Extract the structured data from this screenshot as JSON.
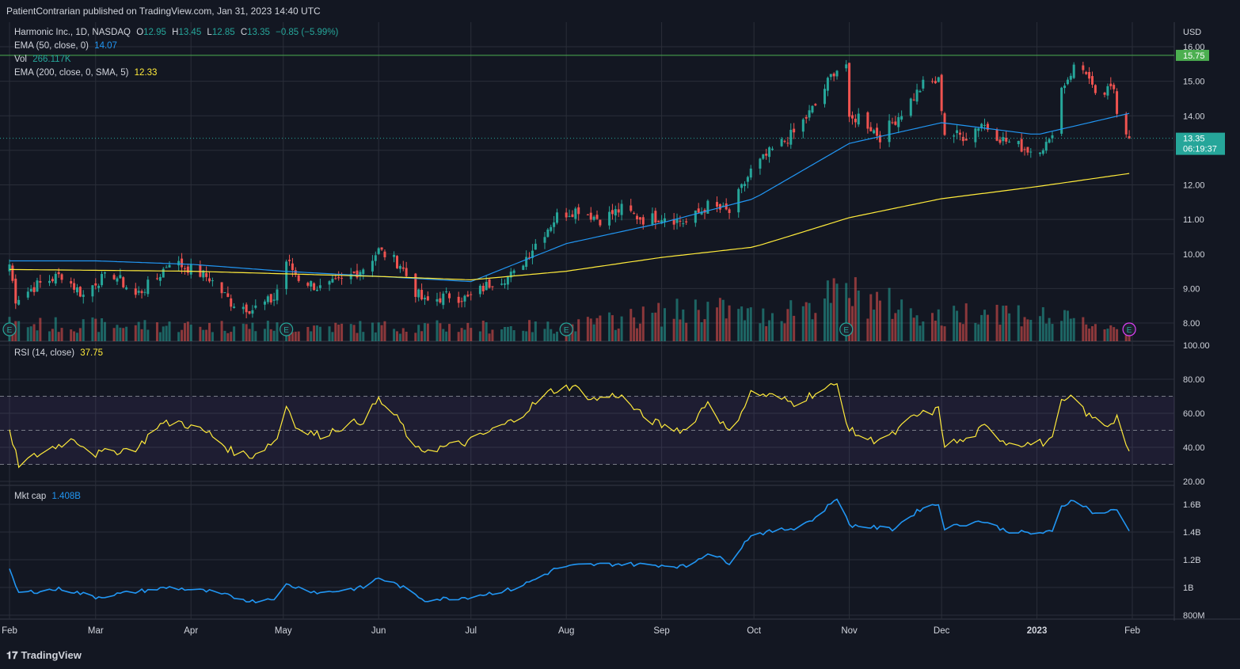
{
  "publisher_line": "PatientContrarian published on TradingView.com, Jan 31, 2023 14:40 UTC",
  "footer_logo": "TradingView",
  "legend": {
    "symbol": "Harmonic Inc., 1D, NASDAQ",
    "o_label": "O",
    "o_value": "12.95",
    "h_label": "H",
    "h_value": "13.45",
    "l_label": "L",
    "l_value": "12.85",
    "c_label": "C",
    "c_value": "13.35",
    "change": "−0.85 (−5.99%)",
    "ema50_label": "EMA (50, close, 0)",
    "ema50_value": "14.07",
    "vol_label": "Vol",
    "vol_value": "266.117K",
    "ema200_label": "EMA (200, close, 0, SMA, 5)",
    "ema200_value": "12.33",
    "rsi_label": "RSI (14, close)",
    "rsi_value": "37.75",
    "mktcap_label": "Mkt cap",
    "mktcap_value": "1.408B"
  },
  "colors": {
    "background": "#131722",
    "grid": "#2a2e39",
    "up": "#26a69a",
    "down": "#ef5350",
    "ema50": "#2196f3",
    "ema200": "#ffeb3b",
    "rsi": "#ffeb3b",
    "mktcap": "#2196f3",
    "resistance_line": "#4caf50"
  },
  "price_axis": {
    "currency": "USD",
    "ticks": [
      "16.00",
      "15.00",
      "14.00",
      "13.00",
      "12.00",
      "11.00",
      "10.00",
      "9.00",
      "8.00"
    ],
    "resistance_label": "15.75",
    "last_price_label": "13.35",
    "countdown_label": "06:19:37"
  },
  "rsi_axis": {
    "ticks": [
      "100.00",
      "80.00",
      "60.00",
      "40.00",
      "20.00"
    ]
  },
  "mktcap_axis": {
    "ticks": [
      "1.6B",
      "1.4B",
      "1.2B",
      "1B",
      "800M"
    ]
  },
  "time_axis": {
    "labels": [
      "Feb",
      "Mar",
      "Apr",
      "May",
      "Jun",
      "Jul",
      "Aug",
      "Sep",
      "Oct",
      "Nov",
      "Dec",
      "2023",
      "Feb"
    ]
  },
  "earnings_marker": "E",
  "chart_data": [
    {
      "type": "candlestick",
      "title": "Harmonic Inc., 1D, NASDAQ",
      "ylim": [
        7.5,
        16.2
      ],
      "y_unit": "USD",
      "resistance_level": 15.75,
      "last_close": 13.35,
      "anchors_close": [
        [
          "2022-02-01",
          9.7
        ],
        [
          "2022-02-03",
          8.7
        ],
        [
          "2022-02-10",
          9.1
        ],
        [
          "2022-02-18",
          9.4
        ],
        [
          "2022-02-25",
          8.8
        ],
        [
          "2022-03-01",
          9.2
        ],
        [
          "2022-03-07",
          9.4
        ],
        [
          "2022-03-14",
          8.8
        ],
        [
          "2022-03-21",
          9.3
        ],
        [
          "2022-03-25",
          9.8
        ],
        [
          "2022-03-31",
          9.6
        ],
        [
          "2022-04-07",
          9.3
        ],
        [
          "2022-04-14",
          8.6
        ],
        [
          "2022-04-21",
          8.4
        ],
        [
          "2022-04-28",
          8.7
        ],
        [
          "2022-05-02",
          9.8
        ],
        [
          "2022-05-06",
          9.3
        ],
        [
          "2022-05-13",
          9.0
        ],
        [
          "2022-05-20",
          9.2
        ],
        [
          "2022-05-27",
          9.6
        ],
        [
          "2022-06-01",
          10.1
        ],
        [
          "2022-06-08",
          9.7
        ],
        [
          "2022-06-13",
          8.9
        ],
        [
          "2022-06-16",
          8.6
        ],
        [
          "2022-06-24",
          8.8
        ],
        [
          "2022-06-30",
          8.7
        ],
        [
          "2022-07-08",
          9.2
        ],
        [
          "2022-07-15",
          9.4
        ],
        [
          "2022-07-22",
          10.3
        ],
        [
          "2022-07-29",
          11.1
        ],
        [
          "2022-08-05",
          11.3
        ],
        [
          "2022-08-12",
          11.0
        ],
        [
          "2022-08-19",
          11.3
        ],
        [
          "2022-08-26",
          11.0
        ],
        [
          "2022-09-02",
          11.1
        ],
        [
          "2022-09-09",
          10.9
        ],
        [
          "2022-09-16",
          11.4
        ],
        [
          "2022-09-23",
          11.2
        ],
        [
          "2022-09-30",
          12.4
        ],
        [
          "2022-10-07",
          13.0
        ],
        [
          "2022-10-14",
          13.5
        ],
        [
          "2022-10-21",
          14.3
        ],
        [
          "2022-10-27",
          15.3
        ],
        [
          "2022-10-31",
          15.5
        ],
        [
          "2022-11-01",
          13.8
        ],
        [
          "2022-11-04",
          14.0
        ],
        [
          "2022-11-11",
          13.4
        ],
        [
          "2022-11-18",
          14.1
        ],
        [
          "2022-11-25",
          14.9
        ],
        [
          "2022-11-30",
          15.0
        ],
        [
          "2022-12-02",
          13.5
        ],
        [
          "2022-12-09",
          13.4
        ],
        [
          "2022-12-14",
          13.8
        ],
        [
          "2022-12-21",
          13.3
        ],
        [
          "2022-12-30",
          13.0
        ],
        [
          "2023-01-05",
          13.2
        ],
        [
          "2023-01-09",
          14.8
        ],
        [
          "2023-01-13",
          15.4
        ],
        [
          "2023-01-17",
          15.3
        ],
        [
          "2023-01-20",
          14.5
        ],
        [
          "2023-01-26",
          14.8
        ],
        [
          "2023-01-27",
          14.2
        ],
        [
          "2023-01-31",
          13.35
        ]
      ],
      "series": [
        {
          "name": "EMA (50, close, 0)",
          "values": [
            [
              "2022-02-01",
              9.8
            ],
            [
              "2022-03-01",
              9.8
            ],
            [
              "2022-04-01",
              9.7
            ],
            [
              "2022-05-01",
              9.5
            ],
            [
              "2022-06-01",
              9.35
            ],
            [
              "2022-07-01",
              9.2
            ],
            [
              "2022-08-01",
              10.3
            ],
            [
              "2022-09-01",
              10.9
            ],
            [
              "2022-10-01",
              11.6
            ],
            [
              "2022-11-01",
              13.2
            ],
            [
              "2022-12-01",
              13.8
            ],
            [
              "2023-01-01",
              13.45
            ],
            [
              "2023-01-31",
              14.07
            ]
          ]
        },
        {
          "name": "EMA (200, close, 0, SMA, 5)",
          "values": [
            [
              "2022-02-01",
              9.55
            ],
            [
              "2022-04-01",
              9.5
            ],
            [
              "2022-06-01",
              9.35
            ],
            [
              "2022-07-01",
              9.25
            ],
            [
              "2022-08-01",
              9.5
            ],
            [
              "2022-09-01",
              9.9
            ],
            [
              "2022-10-01",
              10.2
            ],
            [
              "2022-11-01",
              11.05
            ],
            [
              "2022-12-01",
              11.6
            ],
            [
              "2023-01-01",
              11.95
            ],
            [
              "2023-01-31",
              12.33
            ]
          ]
        }
      ],
      "earnings_dates": [
        "2022-02-01",
        "2022-05-02",
        "2022-08-01",
        "2022-10-31",
        "2023-01-31"
      ]
    },
    {
      "type": "bar",
      "title": "Vol",
      "last_value": "266.117K",
      "volume_relative": [
        [
          "2022-02-01",
          0.35
        ],
        [
          "2022-05-02",
          0.3
        ],
        [
          "2022-08-01",
          0.3
        ],
        [
          "2022-09-16",
          0.7
        ],
        [
          "2022-10-03",
          0.5
        ],
        [
          "2022-10-31",
          1.0
        ],
        [
          "2022-12-02",
          0.45
        ],
        [
          "2022-12-14",
          0.7
        ],
        [
          "2023-01-09",
          0.45
        ],
        [
          "2023-01-31",
          0.25
        ]
      ]
    },
    {
      "type": "line",
      "title": "RSI (14, close)",
      "ylim": [
        20,
        100
      ],
      "bands": [
        30,
        50,
        70
      ],
      "last_value": 37.75,
      "values": [
        [
          "2022-02-01",
          48
        ],
        [
          "2022-02-04",
          30
        ],
        [
          "2022-02-15",
          40
        ],
        [
          "2022-02-22",
          45
        ],
        [
          "2022-03-01",
          36
        ],
        [
          "2022-03-15",
          40
        ],
        [
          "2022-03-21",
          53
        ],
        [
          "2022-03-28",
          55
        ],
        [
          "2022-04-07",
          48
        ],
        [
          "2022-04-14",
          38
        ],
        [
          "2022-04-21",
          35
        ],
        [
          "2022-04-29",
          45
        ],
        [
          "2022-05-02",
          65
        ],
        [
          "2022-05-06",
          50
        ],
        [
          "2022-05-13",
          47
        ],
        [
          "2022-05-20",
          52
        ],
        [
          "2022-05-27",
          56
        ],
        [
          "2022-06-01",
          68
        ],
        [
          "2022-06-08",
          55
        ],
        [
          "2022-06-13",
          38
        ],
        [
          "2022-06-22",
          40
        ],
        [
          "2022-06-30",
          43
        ],
        [
          "2022-07-08",
          50
        ],
        [
          "2022-07-15",
          56
        ],
        [
          "2022-07-22",
          66
        ],
        [
          "2022-07-27",
          73
        ],
        [
          "2022-08-03",
          76
        ],
        [
          "2022-08-10",
          68
        ],
        [
          "2022-08-18",
          71
        ],
        [
          "2022-08-26",
          58
        ],
        [
          "2022-09-02",
          52
        ],
        [
          "2022-09-09",
          50
        ],
        [
          "2022-09-16",
          67
        ],
        [
          "2022-09-23",
          48
        ],
        [
          "2022-09-30",
          72
        ],
        [
          "2022-10-07",
          70
        ],
        [
          "2022-10-14",
          66
        ],
        [
          "2022-10-21",
          72
        ],
        [
          "2022-10-28",
          77
        ],
        [
          "2022-11-01",
          50
        ],
        [
          "2022-11-08",
          44
        ],
        [
          "2022-11-15",
          47
        ],
        [
          "2022-11-22",
          58
        ],
        [
          "2022-11-30",
          62
        ],
        [
          "2022-12-02",
          42
        ],
        [
          "2022-12-09",
          44
        ],
        [
          "2022-12-15",
          52
        ],
        [
          "2022-12-22",
          43
        ],
        [
          "2022-12-30",
          42
        ],
        [
          "2023-01-05",
          43
        ],
        [
          "2023-01-09",
          66
        ],
        [
          "2023-01-13",
          69
        ],
        [
          "2023-01-18",
          58
        ],
        [
          "2023-01-24",
          53
        ],
        [
          "2023-01-27",
          58
        ],
        [
          "2023-01-31",
          37.75
        ]
      ]
    },
    {
      "type": "line",
      "title": "Mkt cap",
      "y_unit": "USD",
      "ylim": [
        0.8,
        1.7
      ],
      "last_value": "1.408B",
      "values_billions": [
        [
          "2022-02-01",
          1.12
        ],
        [
          "2022-02-04",
          0.96
        ],
        [
          "2022-02-18",
          0.99
        ],
        [
          "2022-03-01",
          0.93
        ],
        [
          "2022-03-14",
          0.97
        ],
        [
          "2022-03-25",
          1.0
        ],
        [
          "2022-04-07",
          0.97
        ],
        [
          "2022-04-21",
          0.9
        ],
        [
          "2022-04-29",
          0.93
        ],
        [
          "2022-05-02",
          1.02
        ],
        [
          "2022-05-13",
          0.96
        ],
        [
          "2022-05-27",
          1.0
        ],
        [
          "2022-06-01",
          1.07
        ],
        [
          "2022-06-08",
          1.01
        ],
        [
          "2022-06-16",
          0.91
        ],
        [
          "2022-06-30",
          0.93
        ],
        [
          "2022-07-15",
          0.99
        ],
        [
          "2022-07-22",
          1.06
        ],
        [
          "2022-07-29",
          1.14
        ],
        [
          "2022-08-05",
          1.16
        ],
        [
          "2022-08-19",
          1.17
        ],
        [
          "2022-09-02",
          1.16
        ],
        [
          "2022-09-09",
          1.15
        ],
        [
          "2022-09-16",
          1.25
        ],
        [
          "2022-09-23",
          1.18
        ],
        [
          "2022-09-30",
          1.38
        ],
        [
          "2022-10-14",
          1.43
        ],
        [
          "2022-10-21",
          1.5
        ],
        [
          "2022-10-28",
          1.65
        ],
        [
          "2022-11-01",
          1.45
        ],
        [
          "2022-11-15",
          1.42
        ],
        [
          "2022-11-25",
          1.58
        ],
        [
          "2022-11-30",
          1.6
        ],
        [
          "2022-12-02",
          1.43
        ],
        [
          "2022-12-14",
          1.48
        ],
        [
          "2022-12-22",
          1.41
        ],
        [
          "2022-12-30",
          1.39
        ],
        [
          "2023-01-06",
          1.4
        ],
        [
          "2023-01-09",
          1.58
        ],
        [
          "2023-01-13",
          1.64
        ],
        [
          "2023-01-20",
          1.53
        ],
        [
          "2023-01-27",
          1.56
        ],
        [
          "2023-01-31",
          1.408
        ]
      ]
    }
  ]
}
